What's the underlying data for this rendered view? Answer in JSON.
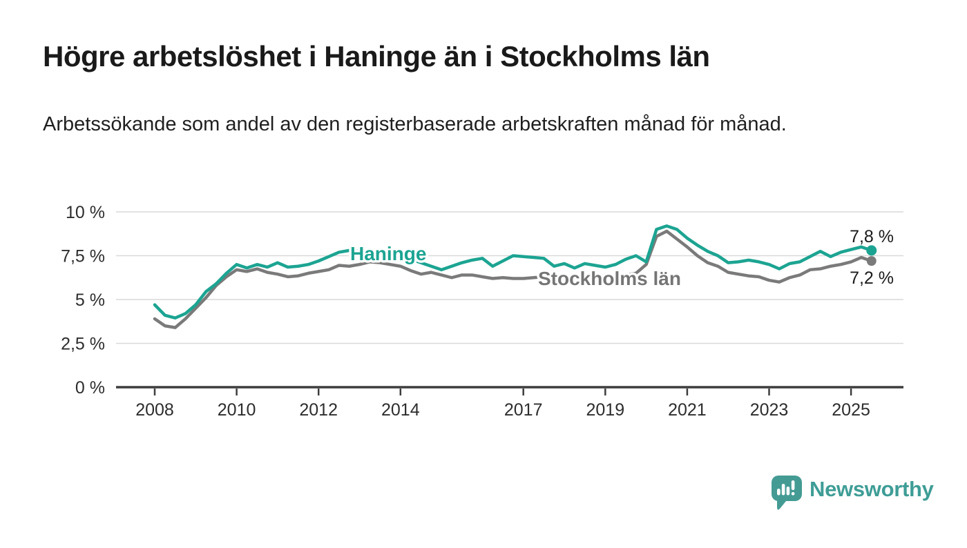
{
  "title": "Högre arbetslöshet i Haninge än i Stockholms län",
  "subtitle": "Arbetssökande som andel av den registerbaserade arbetskraften månad för månad.",
  "footer": {
    "brand": "Newsworthy"
  },
  "colors": {
    "haninge": "#1ca492",
    "stockholm": "#7a7a7a",
    "stockholm_label": "#757575",
    "gridline": "#d9d9d9",
    "axis": "#3d3d3d",
    "text": "#1a1a1a",
    "logo_teal": "#449b94"
  },
  "chart_data": {
    "type": "line",
    "title": "Högre arbetslöshet i Haninge än i Stockholms län",
    "subtitle": "Arbetssökande som andel av den registerbaserade arbetskraften månad för månad.",
    "x_unit": "decimal_year",
    "grid": true,
    "ylim": [
      0,
      10
    ],
    "xlim": [
      2007.1,
      2026.3
    ],
    "yticks": [
      {
        "v": 0,
        "label": "0 %"
      },
      {
        "v": 2.5,
        "label": "2,5 %"
      },
      {
        "v": 5,
        "label": "5 %"
      },
      {
        "v": 7.5,
        "label": "7,5 %"
      },
      {
        "v": 10,
        "label": "10 %"
      }
    ],
    "xticks": [
      {
        "v": 2008,
        "label": "2008"
      },
      {
        "v": 2010,
        "label": "2010"
      },
      {
        "v": 2012,
        "label": "2012"
      },
      {
        "v": 2014,
        "label": "2014"
      },
      {
        "v": 2017,
        "label": "2017"
      },
      {
        "v": 2019,
        "label": "2019"
      },
      {
        "v": 2021,
        "label": "2021"
      },
      {
        "v": 2023,
        "label": "2023"
      },
      {
        "v": 2025,
        "label": "2025"
      }
    ],
    "x": [
      2008,
      2008.25,
      2008.5,
      2008.75,
      2009,
      2009.25,
      2009.5,
      2009.75,
      2010,
      2010.25,
      2010.5,
      2010.75,
      2011,
      2011.25,
      2011.5,
      2011.75,
      2012,
      2012.25,
      2012.5,
      2012.75,
      2013,
      2013.25,
      2013.5,
      2013.75,
      2014,
      2014.25,
      2014.5,
      2014.75,
      2015,
      2015.25,
      2015.5,
      2015.75,
      2016,
      2016.25,
      2016.5,
      2016.75,
      2017,
      2017.25,
      2017.5,
      2017.75,
      2018,
      2018.25,
      2018.5,
      2018.75,
      2019,
      2019.25,
      2019.5,
      2019.75,
      2020,
      2020.25,
      2020.5,
      2020.75,
      2021,
      2021.25,
      2021.5,
      2021.75,
      2022,
      2022.25,
      2022.5,
      2022.75,
      2023,
      2023.25,
      2023.5,
      2023.75,
      2024,
      2024.25,
      2024.5,
      2024.75,
      2025,
      2025.25,
      2025.5
    ],
    "series": [
      {
        "name": "Haninge",
        "color": "#1ca492",
        "end_label": "7,8 %",
        "end_value": 7.8,
        "values": [
          4.7,
          4.1,
          3.95,
          4.2,
          4.7,
          5.45,
          5.9,
          6.5,
          7.0,
          6.8,
          7.0,
          6.85,
          7.1,
          6.85,
          6.9,
          7.0,
          7.2,
          7.45,
          7.7,
          7.8,
          7.75,
          7.8,
          7.7,
          7.55,
          7.4,
          7.3,
          7.1,
          6.9,
          6.7,
          6.9,
          7.1,
          7.25,
          7.35,
          6.9,
          7.2,
          7.5,
          7.45,
          7.4,
          7.35,
          6.9,
          7.05,
          6.8,
          7.05,
          6.95,
          6.85,
          7.0,
          7.3,
          7.5,
          7.15,
          9.0,
          9.2,
          9.0,
          8.5,
          8.1,
          7.75,
          7.5,
          7.1,
          7.15,
          7.25,
          7.15,
          7.0,
          6.75,
          7.05,
          7.15,
          7.45,
          7.75,
          7.45,
          7.7,
          7.85,
          8.0,
          7.8
        ]
      },
      {
        "name": "Stockholms län",
        "color": "#7a7a7a",
        "end_label": "7,2 %",
        "end_value": 7.2,
        "values": [
          3.9,
          3.5,
          3.4,
          3.9,
          4.5,
          5.1,
          5.8,
          6.3,
          6.7,
          6.6,
          6.75,
          6.55,
          6.45,
          6.3,
          6.35,
          6.5,
          6.6,
          6.7,
          6.95,
          6.9,
          7.0,
          7.15,
          7.1,
          7.0,
          6.9,
          6.65,
          6.45,
          6.55,
          6.4,
          6.25,
          6.4,
          6.4,
          6.3,
          6.2,
          6.25,
          6.2,
          6.2,
          6.25,
          6.3,
          6.3,
          6.25,
          6.3,
          6.25,
          6.3,
          6.35,
          6.3,
          6.4,
          6.5,
          7.0,
          8.6,
          8.9,
          8.45,
          8.0,
          7.5,
          7.1,
          6.9,
          6.55,
          6.45,
          6.35,
          6.3,
          6.1,
          6.0,
          6.25,
          6.4,
          6.7,
          6.75,
          6.9,
          7.0,
          7.15,
          7.4,
          7.2
        ]
      }
    ],
    "legend_position": "inline-line-labels"
  }
}
